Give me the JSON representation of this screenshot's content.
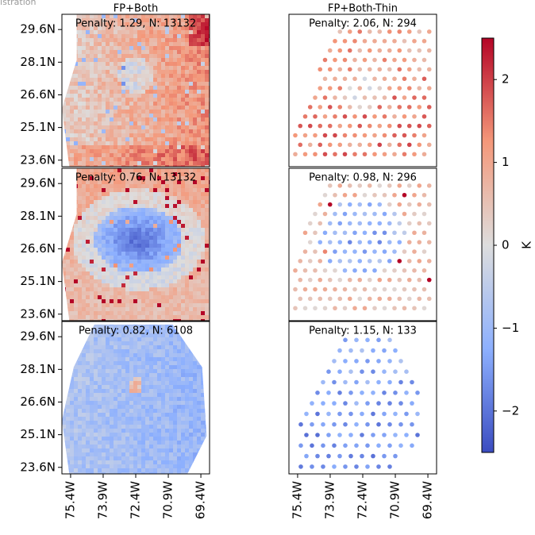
{
  "chart_data": [
    {
      "type": "scatter",
      "title": "FP+Both",
      "annotation": "Penalty: 1.29, N: 13132",
      "xlim": [
        -75.8,
        -69.0
      ],
      "ylim": [
        23.3,
        30.3
      ],
      "yticks": [
        {
          "value": 29.6,
          "label": "29.6N"
        },
        {
          "value": 28.1,
          "label": "28.1N"
        },
        {
          "value": 26.6,
          "label": "26.6N"
        },
        {
          "value": 25.1,
          "label": "25.1N"
        },
        {
          "value": 23.6,
          "label": "23.6N"
        }
      ]
    },
    {
      "type": "scatter",
      "title": "FP+Both-Thin",
      "annotation": "Penalty: 2.06, N: 294",
      "xlim": [
        -75.8,
        -69.0
      ],
      "ylim": [
        23.3,
        30.3
      ]
    },
    {
      "type": "scatter",
      "annotation": "Penalty: 0.76, N: 13132",
      "xlim": [
        -75.8,
        -69.0
      ],
      "ylim": [
        23.3,
        30.3
      ],
      "yticks": [
        {
          "value": 29.6,
          "label": "29.6N"
        },
        {
          "value": 28.1,
          "label": "28.1N"
        },
        {
          "value": 26.6,
          "label": "26.6N"
        },
        {
          "value": 25.1,
          "label": "25.1N"
        },
        {
          "value": 23.6,
          "label": "23.6N"
        }
      ]
    },
    {
      "type": "scatter",
      "annotation": "Penalty: 0.98, N: 296",
      "xlim": [
        -75.8,
        -69.0
      ],
      "ylim": [
        23.3,
        30.3
      ]
    },
    {
      "type": "scatter",
      "annotation": "Penalty: 0.82, N: 6108",
      "xlim": [
        -75.8,
        -69.0
      ],
      "ylim": [
        23.3,
        30.3
      ],
      "yticks": [
        {
          "value": 29.6,
          "label": "29.6N"
        },
        {
          "value": 28.1,
          "label": "28.1N"
        },
        {
          "value": 26.6,
          "label": "26.6N"
        },
        {
          "value": 25.1,
          "label": "25.1N"
        },
        {
          "value": 23.6,
          "label": "23.6N"
        }
      ],
      "xticks": [
        {
          "value": -75.4,
          "label": "75.4W"
        },
        {
          "value": -73.9,
          "label": "73.9W"
        },
        {
          "value": -72.4,
          "label": "72.4W"
        },
        {
          "value": -70.9,
          "label": "70.9W"
        },
        {
          "value": -69.4,
          "label": "69.4W"
        }
      ]
    },
    {
      "type": "scatter",
      "annotation": "Penalty: 1.15, N: 133",
      "xlim": [
        -75.8,
        -69.0
      ],
      "ylim": [
        23.3,
        30.3
      ],
      "xticks": [
        {
          "value": -75.4,
          "label": "75.4W"
        },
        {
          "value": -73.9,
          "label": "73.9W"
        },
        {
          "value": -72.4,
          "label": "72.4W"
        },
        {
          "value": -70.9,
          "label": "70.9W"
        },
        {
          "value": -69.4,
          "label": "69.4W"
        }
      ]
    },
    {
      "type": "colorbar",
      "label": "K",
      "ylim": [
        -2.5,
        2.5
      ],
      "yticks": [
        {
          "value": -2,
          "label": "−2"
        },
        {
          "value": -1,
          "label": "−1"
        },
        0,
        1,
        2
      ]
    }
  ],
  "watermark": "inistration"
}
